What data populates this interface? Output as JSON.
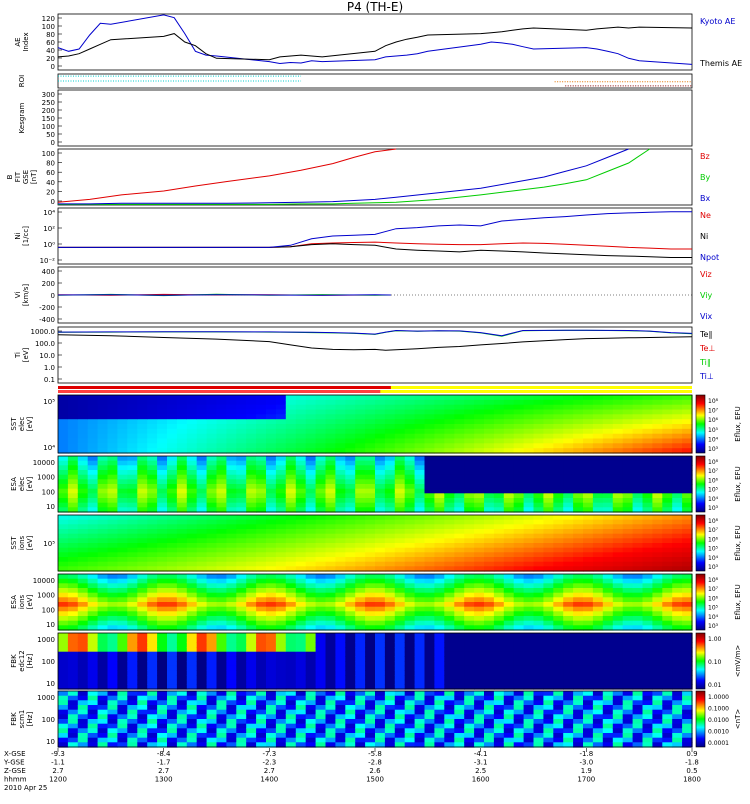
{
  "title": "P4 (TH-E)",
  "footer": {
    "row_labels": [
      "X-GSE",
      "Y-GSE",
      "Z-GSE",
      "hhmm",
      "2010 Apr 25"
    ],
    "columns": [
      [
        "-9.3",
        "-1.1",
        "2.7",
        "1200"
      ],
      [
        "-8.4",
        "-1.7",
        "2.7",
        "1300"
      ],
      [
        "-7.3",
        "-2.3",
        "2.7",
        "1400"
      ],
      [
        "-5.8",
        "-2.8",
        "2.6",
        "1500"
      ],
      [
        "-4.1",
        "-3.1",
        "2.5",
        "1600"
      ],
      [
        "-1.8",
        "-3.0",
        "1.9",
        "1700"
      ],
      [
        "0.9",
        "-1.8",
        "0.5",
        "1800"
      ]
    ]
  },
  "colors": {
    "red": "#e00000",
    "green": "#00cc00",
    "blue": "#0000cc",
    "black": "#000000"
  },
  "chart_data": [
    {
      "type": "line",
      "name": "ae",
      "ylabel": "AE Index",
      "ylim": [
        0,
        120
      ],
      "yticks": [
        "120",
        "100",
        "80",
        "60",
        "40",
        "20",
        "0"
      ],
      "legend": [
        {
          "text": "Kyoto AE",
          "color": "#0000cc"
        },
        {
          "text": "Themis AE",
          "color": "#000000"
        }
      ],
      "x": [
        1200,
        1210,
        1220,
        1230,
        1240,
        1250,
        1300,
        1310,
        1320,
        1330,
        1340,
        1350,
        1400,
        1410,
        1420,
        1430,
        1440,
        1450,
        1500,
        1510,
        1520,
        1530,
        1540,
        1550,
        1600,
        1610,
        1620,
        1630,
        1640,
        1650,
        1700,
        1710,
        1720,
        1730,
        1740,
        1750,
        1800
      ],
      "series": [
        {
          "name": "Kyoto AE",
          "color": "#0000cc",
          "values": [
            48,
            40,
            45,
            75,
            100,
            98,
            118,
            112,
            78,
            40,
            32,
            30,
            18,
            14,
            16,
            15,
            20,
            18,
            22,
            28,
            30,
            32,
            35,
            40,
            55,
            60,
            58,
            55,
            50,
            45,
            48,
            45,
            40,
            35,
            25,
            20,
            12
          ]
        },
        {
          "name": "Themis AE",
          "color": "#000000",
          "values": [
            28,
            30,
            35,
            45,
            55,
            65,
            72,
            78,
            60,
            52,
            35,
            25,
            22,
            28,
            30,
            32,
            30,
            28,
            40,
            52,
            60,
            66,
            70,
            75,
            78,
            80,
            82,
            85,
            88,
            90,
            85,
            88,
            90,
            92,
            90,
            92,
            90
          ]
        }
      ]
    },
    {
      "type": "line",
      "name": "roi",
      "ylabel": "ROI",
      "yticks": [],
      "segments": [
        {
          "x0": 1200,
          "x1": 1430,
          "color": "#00cccc",
          "level": 0.15
        },
        {
          "x0": 1200,
          "x1": 1430,
          "color": "#00cccc",
          "level": 0.5
        },
        {
          "x0": 1670,
          "x1": 1800,
          "color": "#e07000",
          "level": 0.55
        },
        {
          "x0": 1680,
          "x1": 1800,
          "color": "#880000",
          "level": 0.85
        }
      ]
    },
    {
      "type": "line",
      "name": "kesgram",
      "ylabel": "Kesgram",
      "ylim": [
        0,
        300
      ],
      "yticks": [
        "300",
        "250",
        "200",
        "150",
        "100",
        "50",
        "0"
      ],
      "x": [],
      "series": []
    },
    {
      "type": "line",
      "name": "bfield",
      "ylabel": "B FIT GSE [nT]",
      "ylim": [
        0,
        100
      ],
      "yticks": [
        "100",
        "80",
        "60",
        "40",
        "20",
        "0"
      ],
      "legend": [
        {
          "text": "Bz",
          "color": "#e00000"
        },
        {
          "text": "By",
          "color": "#00cc00"
        },
        {
          "text": "Bx",
          "color": "#0000cc"
        }
      ],
      "x": [
        1200,
        1230,
        1260,
        1300,
        1330,
        1360,
        1400,
        1430,
        1460,
        1480,
        1500,
        1520,
        1560,
        1600,
        1630,
        1660,
        1680,
        1700,
        1720,
        1740,
        1760,
        1780
      ],
      "series": [
        {
          "name": "Bz",
          "color": "#e00000",
          "values": [
            5,
            10,
            18,
            25,
            34,
            42,
            52,
            62,
            74,
            85,
            95,
            100,
            null,
            null,
            null,
            null,
            null,
            null,
            null,
            null,
            null,
            null
          ]
        },
        {
          "name": "By",
          "color": "#00cc00",
          "values": [
            1,
            1,
            1,
            1,
            1,
            1,
            1,
            2,
            2,
            3,
            4,
            5,
            10,
            18,
            25,
            32,
            38,
            45,
            60,
            75,
            100,
            null
          ]
        },
        {
          "name": "Bx",
          "color": "#0000cc",
          "values": [
            2,
            2,
            3,
            3,
            3,
            3,
            4,
            5,
            6,
            8,
            10,
            14,
            22,
            30,
            40,
            50,
            60,
            70,
            85,
            100,
            null,
            null
          ]
        }
      ]
    },
    {
      "type": "line",
      "name": "density",
      "ylabel": "Ni [1/cc]",
      "scale": "log",
      "ylim": [
        0.01,
        10000
      ],
      "yticks": [
        "10⁴",
        "10²",
        "10⁰",
        "10⁻²"
      ],
      "legend": [
        {
          "text": "Ne",
          "color": "#e00000"
        },
        {
          "text": "Ni",
          "color": "#000000"
        },
        {
          "text": "Npot",
          "color": "#0000cc"
        }
      ],
      "x": [
        1200,
        1250,
        1300,
        1350,
        1400,
        1420,
        1440,
        1460,
        1480,
        1500,
        1520,
        1540,
        1560,
        1580,
        1600,
        1620,
        1640,
        1660,
        1680,
        1700,
        1720,
        1740,
        1760,
        1780,
        1800
      ],
      "series": [
        {
          "name": "Ne",
          "color": "#e00000",
          "values": [
            0.6,
            0.6,
            0.6,
            0.6,
            0.6,
            0.7,
            1.5,
            1.8,
            2,
            2.2,
            1.8,
            1.5,
            1.3,
            1.2,
            1.2,
            1.5,
            1.8,
            1.6,
            1.3,
            1.0,
            0.8,
            0.6,
            0.5,
            0.4,
            0.4
          ]
        },
        {
          "name": "Ni",
          "color": "#000000",
          "values": [
            0.6,
            0.6,
            0.6,
            0.6,
            0.6,
            0.7,
            1.2,
            1.5,
            1.2,
            1.0,
            0.4,
            0.3,
            0.25,
            0.2,
            0.3,
            0.25,
            0.2,
            0.15,
            0.12,
            0.1,
            0.08,
            0.07,
            0.06,
            0.05,
            0.05
          ]
        },
        {
          "name": "Npot",
          "color": "#0000cc",
          "values": [
            0.6,
            0.6,
            0.6,
            0.6,
            0.6,
            1.0,
            5,
            10,
            12,
            15,
            60,
            80,
            120,
            150,
            120,
            400,
            600,
            900,
            1200,
            1800,
            2500,
            3000,
            3500,
            4000,
            4000
          ]
        }
      ]
    },
    {
      "type": "line",
      "name": "velocity",
      "ylabel": "Vi [km/s]",
      "ylim": [
        -500,
        500
      ],
      "yticks": [
        "400",
        "200",
        "0",
        "-200",
        "-400"
      ],
      "legend": [
        {
          "text": "Viz",
          "color": "#e00000"
        },
        {
          "text": "Viy",
          "color": "#00cc00"
        },
        {
          "text": "Vix",
          "color": "#0000cc"
        }
      ],
      "x": [
        1200,
        1250,
        1300,
        1350,
        1400,
        1450,
        1500,
        1515
      ],
      "series": [
        {
          "name": "Viz",
          "color": "#e00000",
          "values": [
            5,
            -5,
            10,
            0,
            5,
            -5,
            0,
            0
          ]
        },
        {
          "name": "Viy",
          "color": "#00cc00",
          "values": [
            -5,
            10,
            -10,
            15,
            -5,
            8,
            -5,
            0
          ]
        },
        {
          "name": "Vix",
          "color": "#0000cc",
          "values": [
            0,
            5,
            -5,
            5,
            0,
            -5,
            5,
            0
          ]
        }
      ]
    },
    {
      "type": "line",
      "name": "temperature",
      "ylabel": "Ti [eV]",
      "scale": "log",
      "ylim": [
        0.06,
        6000
      ],
      "yticks": [
        "1000.0",
        "100.0",
        "10.0",
        "1.0",
        "0.1"
      ],
      "legend": [
        {
          "text": "Te∥",
          "color": "#000000"
        },
        {
          "text": "Te⊥",
          "color": "#e00000"
        },
        {
          "text": "Ti∥",
          "color": "#00cc00"
        },
        {
          "text": "Ti⊥",
          "color": "#0000cc"
        }
      ],
      "x": [
        1200,
        1250,
        1300,
        1350,
        1400,
        1420,
        1440,
        1460,
        1480,
        1500,
        1510,
        1520,
        1540,
        1560,
        1580,
        1600,
        1620,
        1640,
        1660,
        1680,
        1700,
        1720,
        1740,
        1760,
        1780,
        1800
      ],
      "series": [
        {
          "name": "Te∥",
          "color": "#000000",
          "values": [
            1200,
            1000,
            700,
            500,
            300,
            150,
            80,
            60,
            55,
            60,
            50,
            55,
            70,
            90,
            110,
            150,
            200,
            280,
            350,
            450,
            550,
            600,
            650,
            700,
            750,
            800
          ]
        },
        {
          "name": "Ti∥",
          "color": "#00cc00",
          "values": [
            2000,
            2100,
            2200,
            2200,
            2100,
            2000,
            1900,
            1800,
            1600,
            1300,
            2000,
            2800,
            2500,
            2700,
            2600,
            1800,
            900,
            2800,
            2900,
            3000,
            3000,
            2900,
            2800,
            2500,
            1800,
            1500
          ]
        },
        {
          "name": "Ti⊥",
          "color": "#0000cc",
          "values": [
            2100,
            2200,
            2300,
            2300,
            2200,
            2100,
            2000,
            1900,
            1700,
            1400,
            2100,
            2900,
            2600,
            2800,
            2700,
            1900,
            1000,
            2900,
            3000,
            3100,
            3100,
            3000,
            2900,
            2600,
            1900,
            1600
          ]
        }
      ]
    },
    {
      "type": "heatmap",
      "name": "sst-e",
      "ylabel": "SST elec [eV]",
      "yticks": [
        "10⁵",
        "10⁴"
      ],
      "colorbar_label": "Eflux, EFU",
      "colorbar_ticks": [
        "10⁸",
        "10⁷",
        "10⁶",
        "10⁵",
        "10⁴",
        "10³"
      ]
    },
    {
      "type": "heatmap",
      "name": "esa-e",
      "ylabel": "ESA elec [eV]",
      "yticks": [
        "10000",
        "1000",
        "100",
        "10"
      ],
      "colorbar_label": "Eflux, EFU",
      "colorbar_ticks": [
        "10⁸",
        "10⁷",
        "10⁶",
        "10⁵",
        "10⁴",
        "10³"
      ]
    },
    {
      "type": "heatmap",
      "name": "sst-i",
      "ylabel": "SST ions [eV]",
      "yticks": [
        "10⁵"
      ],
      "colorbar_label": "Eflux, EFU",
      "colorbar_ticks": [
        "10⁸",
        "10⁷",
        "10⁶",
        "10⁵",
        "10⁴",
        "10³"
      ]
    },
    {
      "type": "heatmap",
      "name": "esa-i",
      "ylabel": "ESA ions [eV]",
      "yticks": [
        "10000",
        "1000",
        "100",
        "10"
      ],
      "colorbar_label": "Eflux, EFU",
      "colorbar_ticks": [
        "10⁸",
        "10⁷",
        "10⁶",
        "10⁵",
        "10⁴",
        "10³"
      ]
    },
    {
      "type": "heatmap",
      "name": "fbk-e",
      "ylabel": "FBK edc12 [Hz]",
      "yticks": [
        "1000",
        "100",
        "10"
      ],
      "colorbar_label": "<mV/m>",
      "colorbar_ticks": [
        "1.00",
        "0.10",
        "0.01"
      ]
    },
    {
      "type": "heatmap",
      "name": "fbk-b",
      "ylabel": "FBK scm1 [Hz]",
      "yticks": [
        "1000",
        "100",
        "10"
      ],
      "colorbar_label": "<nT>",
      "colorbar_ticks": [
        "1.0000",
        "0.1000",
        "0.0100",
        "0.0010",
        "0.0001"
      ]
    }
  ]
}
